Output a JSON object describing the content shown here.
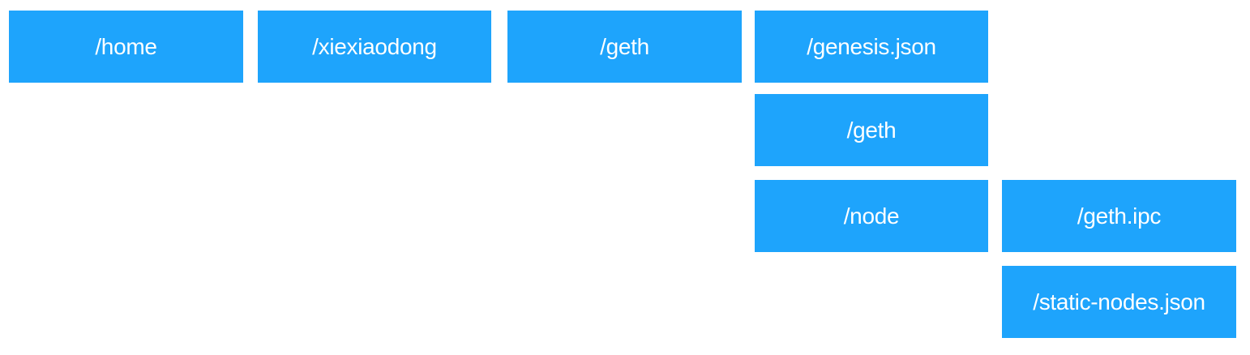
{
  "theme": {
    "box_color": "#1ea4fc",
    "text_color": "#ffffff",
    "background": "#ffffff"
  },
  "tree": {
    "home": "/home",
    "xiexiaodong": "/xiexiaodong",
    "geth": "/geth",
    "genesis_json": "/genesis.json",
    "geth_data": "/geth",
    "node": "/node",
    "geth_ipc": "/geth.ipc",
    "static_nodes_json": "/static-nodes.json"
  }
}
